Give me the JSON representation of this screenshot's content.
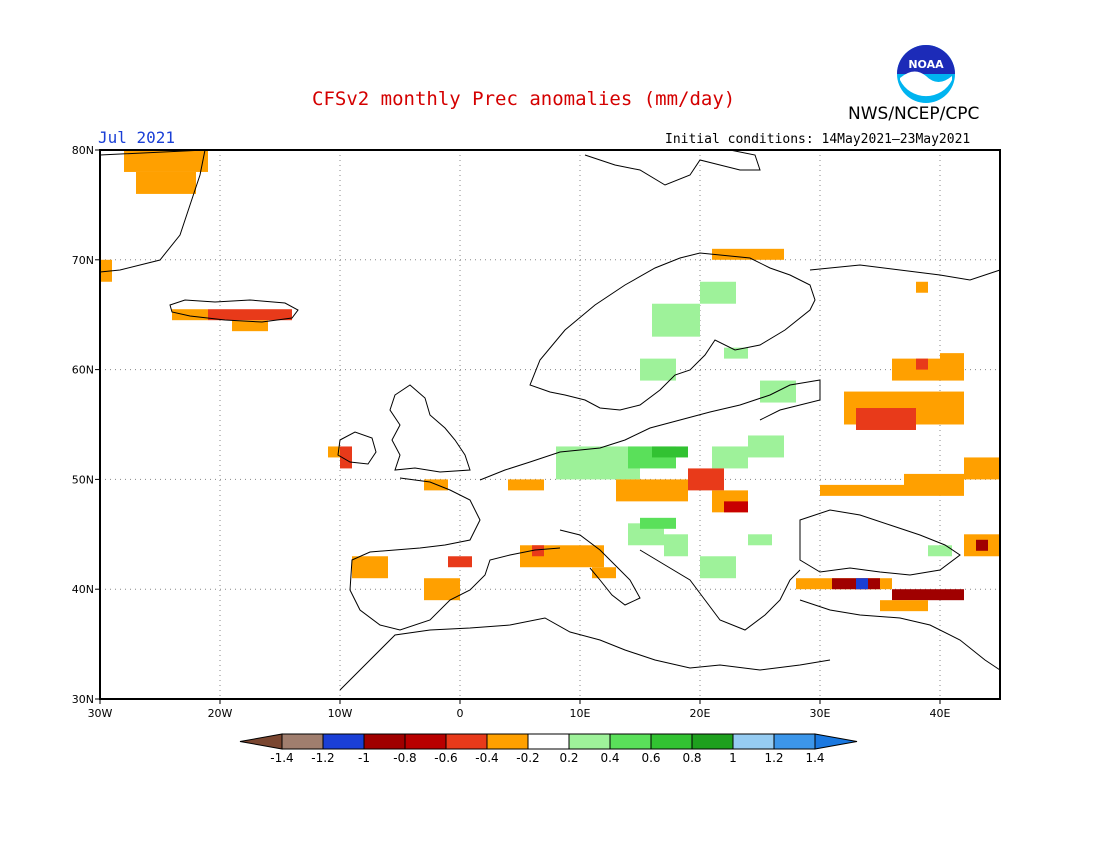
{
  "header": {
    "title": "CFSv2 monthly Prec anomalies (mm/day)",
    "month": "Jul 2021",
    "initial_conditions": "Initial conditions: 14May2021–23May2021",
    "agency": "NWS/NCEP/CPC",
    "logo_text": "NOAA"
  },
  "map": {
    "lon_range": [
      -30,
      45
    ],
    "lat_range": [
      30,
      80
    ],
    "lon_ticks": [
      "30W",
      "20W",
      "10W",
      "0",
      "10E",
      "20E",
      "30E",
      "40E"
    ],
    "lat_ticks": [
      "30N",
      "40N",
      "50N",
      "60N",
      "70N",
      "80N"
    ],
    "grid": "dotted"
  },
  "colorbar": {
    "labels": [
      "-1.4",
      "-1.2",
      "-1",
      "-0.8",
      "-0.6",
      "-0.4",
      "-0.2",
      "0.2",
      "0.4",
      "0.6",
      "0.8",
      "1",
      "1.2",
      "1.4"
    ],
    "colors": [
      "#8c5a46",
      "#a07e6e",
      "#1a3fd6",
      "#a00000",
      "#b80000",
      "#e83a1a",
      "#ffa000",
      "#ffffff",
      "#9ef29a",
      "#5ae05a",
      "#32c232",
      "#1ea01e",
      "#96ccf2",
      "#3c96ea",
      "#1a78e0"
    ],
    "arrow_left_color": "#7a4630",
    "arrow_right_color": "#1a78e0"
  },
  "anomaly_colors": {
    "orange": "#ffa000",
    "red_orange": "#e83a1a",
    "red": "#c80000",
    "dark_red": "#a00000",
    "blue": "#1a3fd6",
    "light_green": "#9ef29a",
    "green": "#5ae05a",
    "dark_green": "#32c232"
  }
}
